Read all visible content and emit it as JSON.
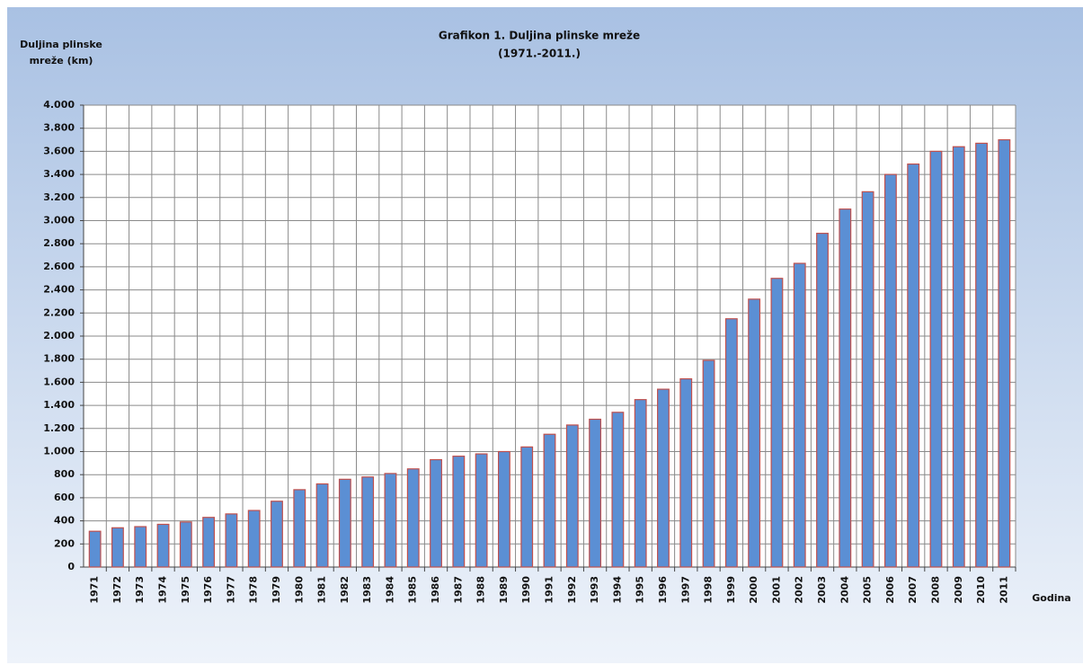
{
  "chart_data": {
    "type": "bar",
    "title": "Grafikon 1. Duljina plinske mreže",
    "subtitle": "(1971.-2011.)",
    "ylabel": [
      "Duljina plinske",
      "mreže (km)"
    ],
    "xlabel": "Godina",
    "categories": [
      "1971",
      "1972",
      "1973",
      "1974",
      "1975",
      "1976",
      "1977",
      "1978",
      "1979",
      "1980",
      "1981",
      "1982",
      "1983",
      "1984",
      "1985",
      "1986",
      "1987",
      "1988",
      "1989",
      "1990",
      "1991",
      "1992",
      "1993",
      "1994",
      "1995",
      "1996",
      "1997",
      "1998",
      "1999",
      "2000",
      "2001",
      "2002",
      "2003",
      "2004",
      "2005",
      "2006",
      "2007",
      "2008",
      "2009",
      "2010",
      "2011"
    ],
    "values": [
      310,
      340,
      350,
      370,
      390,
      430,
      460,
      490,
      570,
      670,
      720,
      760,
      780,
      810,
      850,
      930,
      960,
      980,
      1000,
      1040,
      1150,
      1230,
      1280,
      1340,
      1450,
      1540,
      1630,
      1790,
      2150,
      2320,
      2500,
      2630,
      2890,
      3100,
      3250,
      3400,
      3490,
      3600,
      3640,
      3670,
      3700
    ],
    "color": "#5b8fd4",
    "edgecolor": "#c0504d",
    "ylim": [
      0,
      4000
    ],
    "yticks": [
      0,
      200,
      400,
      600,
      800,
      {
        "value": 1000,
        "label": "1.000"
      },
      {
        "value": 1200,
        "label": "1.200"
      },
      {
        "value": 1400,
        "label": "1.400"
      },
      {
        "value": 1600,
        "label": "1.600"
      },
      {
        "value": 1800,
        "label": "1.800"
      },
      {
        "value": 2000,
        "label": "2.000"
      },
      {
        "value": 2200,
        "label": "2.200"
      },
      {
        "value": 2400,
        "label": "2.400"
      },
      {
        "value": 2600,
        "label": "2.600"
      },
      {
        "value": 2800,
        "label": "2.800"
      },
      {
        "value": 3000,
        "label": "3.000"
      },
      {
        "value": 3200,
        "label": "3.200"
      },
      {
        "value": 3400,
        "label": "3.400"
      },
      {
        "value": 3600,
        "label": "3.600"
      },
      {
        "value": 3800,
        "label": "3.800"
      },
      {
        "value": 4000,
        "label": "4.000"
      }
    ],
    "grid": true
  }
}
